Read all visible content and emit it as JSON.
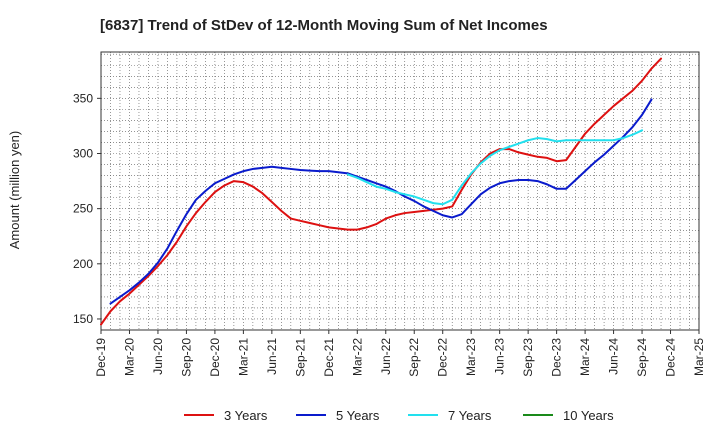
{
  "chart_data": {
    "type": "line",
    "title": "[6837]  Trend of StDev of 12-Month Moving Sum of Net Incomes",
    "ylabel": "Amount (million yen)",
    "xlabel": "",
    "ylim": [
      140,
      392
    ],
    "yticks": [
      150,
      200,
      250,
      300,
      350
    ],
    "xlim": [
      "2019-12",
      "2025-03"
    ],
    "x_tick_labels": [
      "Dec-19",
      "Mar-20",
      "Jun-20",
      "Sep-20",
      "Dec-20",
      "Mar-21",
      "Jun-21",
      "Sep-21",
      "Dec-21",
      "Mar-22",
      "Jun-22",
      "Sep-22",
      "Dec-22",
      "Mar-23",
      "Jun-23",
      "Sep-23",
      "Dec-23",
      "Mar-24",
      "Jun-24",
      "Sep-24",
      "Dec-24",
      "Mar-25"
    ],
    "grid": true,
    "legend_position": "bottom",
    "series": [
      {
        "name": "3 Years",
        "color": "#dd1111",
        "start": "2019-12",
        "values": [
          145,
          157,
          166,
          173,
          181,
          189,
          198,
          208,
          220,
          234,
          246,
          256,
          265,
          271,
          275,
          274,
          270,
          264,
          256,
          248,
          241,
          239,
          237,
          235,
          233,
          232,
          231,
          231,
          233,
          236,
          241,
          244,
          246,
          247,
          248,
          249,
          250,
          252,
          267,
          281,
          292,
          300,
          304,
          304,
          301,
          299,
          297,
          296,
          293,
          294,
          306,
          318,
          327,
          335,
          343,
          350,
          357,
          366,
          377,
          386
        ]
      },
      {
        "name": "5 Years",
        "color": "#0a1bcc",
        "start": "2020-01",
        "values": [
          164,
          170,
          176,
          183,
          191,
          201,
          214,
          230,
          245,
          258,
          266,
          273,
          277,
          281,
          284,
          286,
          287,
          288,
          287,
          286,
          285,
          284.5,
          284,
          284,
          283,
          282,
          279,
          276,
          273,
          270,
          266,
          261,
          257,
          252,
          248,
          244,
          242,
          245,
          254,
          263,
          269,
          273,
          275,
          276,
          276,
          275,
          272,
          268,
          268,
          276,
          284,
          292,
          299,
          307,
          315,
          324,
          335,
          349
        ]
      },
      {
        "name": "7 Years",
        "color": "#22e0ee",
        "start": "2022-02",
        "values": [
          281,
          278,
          274,
          270,
          268,
          265,
          263,
          261,
          258,
          255,
          254,
          258,
          271,
          282,
          291,
          298,
          303,
          306,
          309,
          312,
          314,
          313,
          311,
          312,
          312,
          312,
          312,
          312,
          312,
          314,
          317,
          321
        ]
      },
      {
        "name": "10 Years",
        "color": "#1a8a1a",
        "start": "2019-12",
        "values": []
      }
    ]
  }
}
